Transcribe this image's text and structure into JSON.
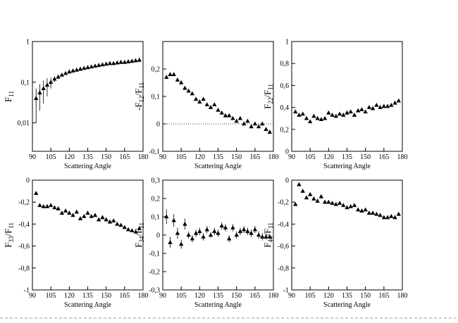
{
  "chart_data": [
    {
      "type": "scatter",
      "ylabel": [
        "F",
        "11"
      ],
      "xlabel": "Scattering Angle",
      "yscale": "log",
      "color": "#000000",
      "x": [
        93,
        96,
        99,
        102,
        105,
        108,
        111,
        114,
        117,
        120,
        123,
        126,
        129,
        132,
        135,
        138,
        141,
        144,
        147,
        150,
        153,
        156,
        159,
        162,
        165,
        168,
        171,
        174,
        177
      ],
      "values": [
        0.04,
        0.055,
        0.07,
        0.085,
        0.1,
        0.12,
        0.135,
        0.15,
        0.165,
        0.18,
        0.19,
        0.2,
        0.21,
        0.22,
        0.23,
        0.24,
        0.25,
        0.26,
        0.27,
        0.28,
        0.29,
        0.29,
        0.3,
        0.31,
        0.31,
        0.32,
        0.33,
        0.34,
        0.35
      ],
      "errors": [
        0.03,
        0.035,
        0.04,
        0.04,
        0.03,
        0.02,
        0.015,
        0.01,
        0.01,
        0.01,
        0.01,
        0.01,
        0.01,
        0.01,
        0.01,
        0.01,
        0.01,
        0.01,
        0.015,
        0.015,
        0.02,
        0.02,
        0.02,
        0.025,
        0.025,
        0.03,
        0.03,
        0.03,
        0.04
      ],
      "xlim": [
        90,
        180
      ],
      "xticks": [
        90,
        105,
        120,
        135,
        150,
        165,
        180
      ],
      "ylim": [
        0.002,
        1
      ],
      "yticks": [
        {
          "value": 0.01,
          "label": "0,01"
        },
        {
          "value": 0.1,
          "label": "0,1"
        },
        1
      ]
    },
    {
      "type": "scatter",
      "ylabel": [
        "-F",
        "12",
        "/F",
        "11"
      ],
      "xlabel": "Scattering Angle",
      "color": "#000000",
      "zero_line": true,
      "x": [
        93,
        96,
        99,
        102,
        105,
        108,
        111,
        114,
        117,
        120,
        123,
        126,
        129,
        132,
        135,
        138,
        141,
        144,
        147,
        150,
        153,
        156,
        159,
        162,
        165,
        168,
        171,
        174,
        177
      ],
      "values": [
        0.17,
        0.18,
        0.18,
        0.16,
        0.15,
        0.13,
        0.12,
        0.11,
        0.09,
        0.08,
        0.09,
        0.07,
        0.06,
        0.07,
        0.05,
        0.04,
        0.03,
        0.03,
        0.02,
        0.01,
        0.02,
        0.0,
        0.01,
        -0.01,
        0.0,
        -0.01,
        0.0,
        -0.02,
        -0.03
      ],
      "xlim": [
        90,
        180
      ],
      "xticks": [
        90,
        105,
        120,
        135,
        150,
        165,
        180
      ],
      "ylim": [
        -0.1,
        0.3
      ],
      "yticks": [
        {
          "value": -0.1,
          "label": "-0,1"
        },
        0,
        {
          "value": 0.1,
          "label": "0,1"
        },
        {
          "value": 0.2,
          "label": "0,2"
        }
      ]
    },
    {
      "type": "scatter",
      "ylabel": [
        "F",
        "22",
        "/F",
        "11"
      ],
      "xlabel": "Scattering Angle",
      "color": "#000000",
      "x": [
        93,
        96,
        99,
        102,
        105,
        108,
        111,
        114,
        117,
        120,
        123,
        126,
        129,
        132,
        135,
        138,
        141,
        144,
        147,
        150,
        153,
        156,
        159,
        162,
        165,
        168,
        171,
        174,
        177
      ],
      "values": [
        0.36,
        0.33,
        0.34,
        0.3,
        0.27,
        0.32,
        0.3,
        0.29,
        0.3,
        0.35,
        0.33,
        0.32,
        0.34,
        0.33,
        0.35,
        0.36,
        0.33,
        0.37,
        0.38,
        0.36,
        0.4,
        0.39,
        0.42,
        0.4,
        0.41,
        0.41,
        0.42,
        0.44,
        0.46
      ],
      "xlim": [
        90,
        180
      ],
      "xticks": [
        90,
        105,
        120,
        135,
        150,
        165,
        180
      ],
      "ylim": [
        0,
        1
      ],
      "yticks": [
        0,
        {
          "value": 0.2,
          "label": "0,2"
        },
        {
          "value": 0.4,
          "label": "0,4"
        },
        {
          "value": 0.6,
          "label": "0,6"
        },
        {
          "value": 0.8,
          "label": "0,8"
        },
        1
      ]
    },
    {
      "type": "scatter",
      "ylabel": [
        "F",
        "33",
        "/F",
        "11"
      ],
      "xlabel": "Scattering Angle",
      "color": "#000000",
      "x": [
        93,
        96,
        99,
        102,
        105,
        108,
        111,
        114,
        117,
        120,
        123,
        126,
        129,
        132,
        135,
        138,
        141,
        144,
        147,
        150,
        153,
        156,
        159,
        162,
        165,
        168,
        171,
        174,
        177
      ],
      "values": [
        -0.12,
        -0.23,
        -0.24,
        -0.24,
        -0.23,
        -0.25,
        -0.26,
        -0.3,
        -0.28,
        -0.3,
        -0.32,
        -0.29,
        -0.35,
        -0.33,
        -0.3,
        -0.33,
        -0.32,
        -0.36,
        -0.34,
        -0.36,
        -0.38,
        -0.37,
        -0.4,
        -0.41,
        -0.43,
        -0.45,
        -0.46,
        -0.47,
        -0.44
      ],
      "xlim": [
        90,
        180
      ],
      "xticks": [
        90,
        105,
        120,
        135,
        150,
        165,
        180
      ],
      "ylim": [
        -1,
        0
      ],
      "yticks": [
        -1,
        {
          "value": -0.8,
          "label": "-0,8"
        },
        {
          "value": -0.6,
          "label": "-0,6"
        },
        {
          "value": -0.4,
          "label": "-0,4"
        },
        {
          "value": -0.2,
          "label": "-0,2"
        },
        0
      ]
    },
    {
      "type": "scatter",
      "ylabel": [
        "F",
        "34",
        "/F",
        "11"
      ],
      "xlabel": "Scattering Angle",
      "color": "#000000",
      "x": [
        93,
        96,
        99,
        102,
        105,
        108,
        111,
        114,
        117,
        120,
        123,
        126,
        129,
        132,
        135,
        138,
        141,
        144,
        147,
        150,
        153,
        156,
        159,
        162,
        165,
        168,
        171,
        174,
        177
      ],
      "values": [
        0.1,
        -0.04,
        0.08,
        0.01,
        -0.05,
        0.06,
        0.0,
        -0.02,
        0.01,
        0.02,
        -0.01,
        0.03,
        0.0,
        0.02,
        0.01,
        0.05,
        0.04,
        -0.02,
        0.04,
        0.0,
        0.02,
        0.03,
        0.02,
        0.01,
        0.03,
        0.0,
        -0.01,
        -0.01,
        -0.01
      ],
      "errors": [
        0.04,
        0.03,
        0.035,
        0.03,
        0.025,
        0.03,
        0.02,
        0.02,
        0.02,
        0.02,
        0.02,
        0.02,
        0.015,
        0.02,
        0.02,
        0.02,
        0.02,
        0.02,
        0.02,
        0.02,
        0.02,
        0.02,
        0.02,
        0.02,
        0.02,
        0.02,
        0.02,
        0.015,
        0.015
      ],
      "xlim": [
        90,
        180
      ],
      "xticks": [
        90,
        105,
        120,
        135,
        150,
        165,
        180
      ],
      "ylim": [
        -0.3,
        0.3
      ],
      "yticks": [
        {
          "value": -0.3,
          "label": "-0,3"
        },
        {
          "value": -0.2,
          "label": "-0,2"
        },
        {
          "value": -0.1,
          "label": "-0,1"
        },
        0,
        {
          "value": 0.1,
          "label": "0,1"
        },
        {
          "value": 0.2,
          "label": "0,2"
        },
        {
          "value": 0.3,
          "label": "0,3"
        }
      ]
    },
    {
      "type": "scatter",
      "ylabel": [
        "F",
        "44",
        "/F",
        "11"
      ],
      "xlabel": "Scattering Angle",
      "color": "#000000",
      "x": [
        93,
        96,
        99,
        102,
        105,
        108,
        111,
        114,
        117,
        120,
        123,
        126,
        129,
        132,
        135,
        138,
        141,
        144,
        147,
        150,
        153,
        156,
        159,
        162,
        165,
        168,
        171,
        174,
        177
      ],
      "values": [
        -0.22,
        -0.04,
        -0.1,
        -0.16,
        -0.13,
        -0.17,
        -0.19,
        -0.15,
        -0.2,
        -0.2,
        -0.21,
        -0.22,
        -0.21,
        -0.23,
        -0.25,
        -0.24,
        -0.23,
        -0.27,
        -0.28,
        -0.27,
        -0.3,
        -0.3,
        -0.31,
        -0.32,
        -0.34,
        -0.34,
        -0.33,
        -0.34,
        -0.31
      ],
      "xlim": [
        90,
        180
      ],
      "xticks": [
        90,
        105,
        120,
        135,
        150,
        165,
        180
      ],
      "ylim": [
        -1,
        0
      ],
      "yticks": [
        -1,
        {
          "value": -0.8,
          "label": "-0,8"
        },
        {
          "value": -0.6,
          "label": "-0,6"
        },
        {
          "value": -0.4,
          "label": "-0,4"
        },
        {
          "value": -0.2,
          "label": "-0,2"
        },
        0
      ]
    }
  ]
}
